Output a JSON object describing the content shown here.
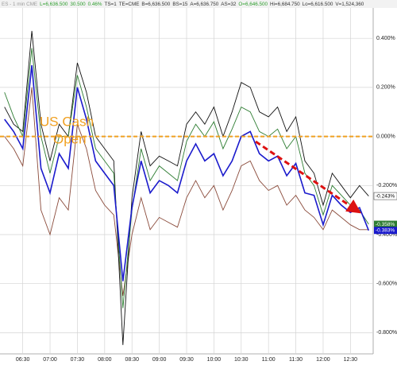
{
  "chart_data": {
    "type": "line",
    "header": [
      {
        "text": "ES - 1 min  CME",
        "color": "#9a9a9a"
      },
      {
        "text": "L=6,636.500",
        "color": "#2e9e2e"
      },
      {
        "text": "30.500",
        "color": "#2e9e2e"
      },
      {
        "text": "0.46%",
        "color": "#2e9e2e"
      },
      {
        "text": "TS=1",
        "color": "#333333"
      },
      {
        "text": "TE=CME",
        "color": "#333333"
      },
      {
        "text": "B=6,636.500",
        "color": "#333333"
      },
      {
        "text": "BS=15",
        "color": "#333333"
      },
      {
        "text": "A=6,636.750",
        "color": "#333333"
      },
      {
        "text": "AS=32",
        "color": "#333333"
      },
      {
        "text": "O=6,646.500",
        "color": "#2e9e2e"
      },
      {
        "text": "Hi=6,684.750",
        "color": "#333333"
      },
      {
        "text": "Lo=6,616.500",
        "color": "#333333"
      },
      {
        "text": "V=1,524,360",
        "color": "#333333"
      }
    ],
    "annotation": [
      "US Cash",
      "Open"
    ],
    "annotation_color": "#f0a020",
    "reference_value": 0,
    "x": [
      "06:10",
      "06:20",
      "06:30",
      "06:40",
      "06:50",
      "07:00",
      "07:10",
      "07:20",
      "07:30",
      "07:40",
      "07:50",
      "08:00",
      "08:10",
      "08:20",
      "08:30",
      "08:40",
      "08:50",
      "09:00",
      "09:10",
      "09:20",
      "09:30",
      "09:40",
      "09:50",
      "10:00",
      "10:10",
      "10:20",
      "10:30",
      "10:40",
      "10:50",
      "11:00",
      "11:10",
      "11:20",
      "11:30",
      "11:40",
      "11:50",
      "12:00",
      "12:10",
      "12:20",
      "12:30",
      "12:40",
      "12:50"
    ],
    "xlim": [
      "06:05",
      "12:55"
    ],
    "xticks": [
      "06:30",
      "07:00",
      "07:30",
      "08:00",
      "08:30",
      "09:00",
      "09:30",
      "10:00",
      "10:30",
      "11:00",
      "11:30",
      "12:00",
      "12:30"
    ],
    "ylim": [
      -0.87,
      0.54
    ],
    "yticks": [
      {
        "value": 0.4,
        "label": "0.400%"
      },
      {
        "value": 0.2,
        "label": "0.200%"
      },
      {
        "value": 0,
        "label": "0.000%"
      },
      {
        "value": -0.2,
        "label": "-0.200%"
      },
      {
        "value": -0.4,
        "label": "-0.400%"
      },
      {
        "value": -0.6,
        "label": "-0.600%"
      },
      {
        "value": -0.8,
        "label": "-0.800%"
      }
    ],
    "grid": true,
    "series": [
      {
        "color": "#8a4a3a",
        "values": [
          0.0,
          -0.05,
          -0.12,
          0.2,
          -0.3,
          -0.4,
          -0.25,
          -0.3,
          0.05,
          -0.05,
          -0.22,
          -0.28,
          -0.32,
          -0.65,
          -0.4,
          -0.25,
          -0.38,
          -0.33,
          -0.35,
          -0.37,
          -0.25,
          -0.18,
          -0.25,
          -0.2,
          -0.3,
          -0.22,
          -0.12,
          -0.1,
          -0.18,
          -0.22,
          -0.2,
          -0.28,
          -0.24,
          -0.3,
          -0.33,
          -0.38,
          -0.3,
          -0.33,
          -0.36,
          -0.38,
          -0.38
        ]
      },
      {
        "color": "#111111",
        "end_label": "-0.243%",
        "values": [
          0.12,
          0.05,
          0.02,
          0.43,
          0.05,
          -0.1,
          0.05,
          0.0,
          0.3,
          0.18,
          0.0,
          -0.05,
          -0.1,
          -0.85,
          -0.25,
          0.02,
          -0.12,
          -0.08,
          -0.1,
          -0.12,
          0.05,
          0.1,
          0.05,
          0.12,
          0.0,
          0.1,
          0.22,
          0.2,
          0.1,
          0.08,
          0.12,
          0.02,
          0.08,
          -0.1,
          -0.15,
          -0.28,
          -0.15,
          -0.2,
          -0.25,
          -0.2,
          -0.243
        ]
      },
      {
        "color": "#2e7d32",
        "end_label": "-0.358%",
        "values": [
          0.18,
          0.08,
          0.0,
          0.36,
          0.0,
          -0.15,
          0.0,
          0.0,
          0.25,
          0.12,
          -0.05,
          -0.1,
          -0.15,
          -0.7,
          -0.3,
          -0.05,
          -0.18,
          -0.12,
          -0.15,
          -0.18,
          -0.02,
          0.05,
          0.0,
          0.06,
          -0.05,
          0.03,
          0.12,
          0.1,
          0.02,
          0.0,
          0.03,
          -0.05,
          0.0,
          -0.15,
          -0.2,
          -0.32,
          -0.2,
          -0.24,
          -0.28,
          -0.3,
          -0.358
        ]
      },
      {
        "color": "#1a1acc",
        "end_label": "-0.383%",
        "values": [
          0.07,
          0.02,
          -0.05,
          0.29,
          -0.13,
          -0.23,
          -0.07,
          -0.13,
          0.2,
          0.07,
          -0.1,
          -0.15,
          -0.2,
          -0.59,
          -0.29,
          -0.1,
          -0.23,
          -0.18,
          -0.2,
          -0.23,
          -0.1,
          -0.03,
          -0.1,
          -0.07,
          -0.16,
          -0.1,
          0,
          0.02,
          -0.07,
          -0.1,
          -0.08,
          -0.16,
          -0.11,
          -0.23,
          -0.24,
          -0.36,
          -0.24,
          -0.28,
          -0.31,
          -0.29,
          -0.383
        ]
      }
    ]
  }
}
